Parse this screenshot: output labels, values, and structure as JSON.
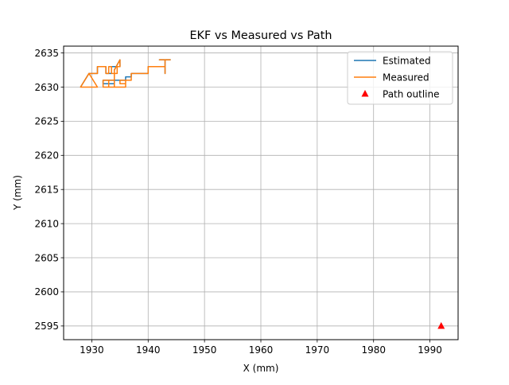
{
  "chart_data": {
    "type": "line",
    "title": "EKF vs Measured vs Path",
    "xlabel": "X (mm)",
    "ylabel": "Y (mm)",
    "xlim": [
      1925,
      1995
    ],
    "ylim": [
      2593,
      2636
    ],
    "xticks": [
      1930,
      1940,
      1950,
      1960,
      1970,
      1980,
      1990
    ],
    "yticks": [
      2595,
      2600,
      2605,
      2610,
      2615,
      2620,
      2625,
      2630,
      2635
    ],
    "grid": true,
    "legend_position": "top-right",
    "series": [
      {
        "name": "Estimated",
        "kind": "line",
        "color": "#1f77b4",
        "x": [
          1928,
          1929.5,
          1929.5,
          1931,
          1931,
          1932.5,
          1932.5,
          1933.5,
          1933.5,
          1935,
          1935,
          1934,
          1934,
          1932,
          1932,
          1936,
          1936,
          1937,
          1937,
          1940,
          1940,
          1943,
          1943,
          1943,
          1943,
          1942,
          1942,
          1944
        ],
        "y": [
          2630,
          2632,
          2632,
          2632,
          2633,
          2633,
          2632,
          2632,
          2633,
          2633,
          2634,
          2632.5,
          2630.5,
          2630.5,
          2631,
          2631,
          2631.5,
          2631.5,
          2632,
          2632,
          2633,
          2633,
          2632,
          2634,
          2634,
          2634,
          2634,
          2634
        ]
      },
      {
        "name": "Measured",
        "kind": "line",
        "color": "#ff7f0e",
        "x": [
          1928,
          1929.5,
          1928,
          1931,
          1929.5,
          1931,
          1931,
          1932.5,
          1932.5,
          1933,
          1933,
          1933.5,
          1933.5,
          1934.5,
          1934.5,
          1935,
          1935,
          1934,
          1934,
          1932,
          1932,
          1933,
          1933,
          1932,
          1932,
          1934,
          1934,
          1936,
          1936,
          1935,
          1935,
          1936,
          1936,
          1937,
          1937,
          1940,
          1940,
          1943,
          1943,
          1943,
          1943,
          1942,
          1944
        ],
        "y": [
          2630,
          2632,
          2630,
          2630,
          2632,
          2632,
          2633,
          2633,
          2632,
          2632,
          2633,
          2633,
          2632,
          2632,
          2633,
          2633,
          2634,
          2632.5,
          2630,
          2630,
          2631,
          2631,
          2630,
          2630,
          2631,
          2631,
          2630,
          2630,
          2631,
          2631,
          2630.5,
          2630.5,
          2631,
          2631,
          2632,
          2632,
          2633,
          2633,
          2632,
          2634,
          2634,
          2634,
          2634
        ]
      },
      {
        "name": "Path outline",
        "kind": "marker",
        "marker": "triangle",
        "color": "#ff0000",
        "x": [
          1992
        ],
        "y": [
          2595
        ]
      }
    ]
  }
}
